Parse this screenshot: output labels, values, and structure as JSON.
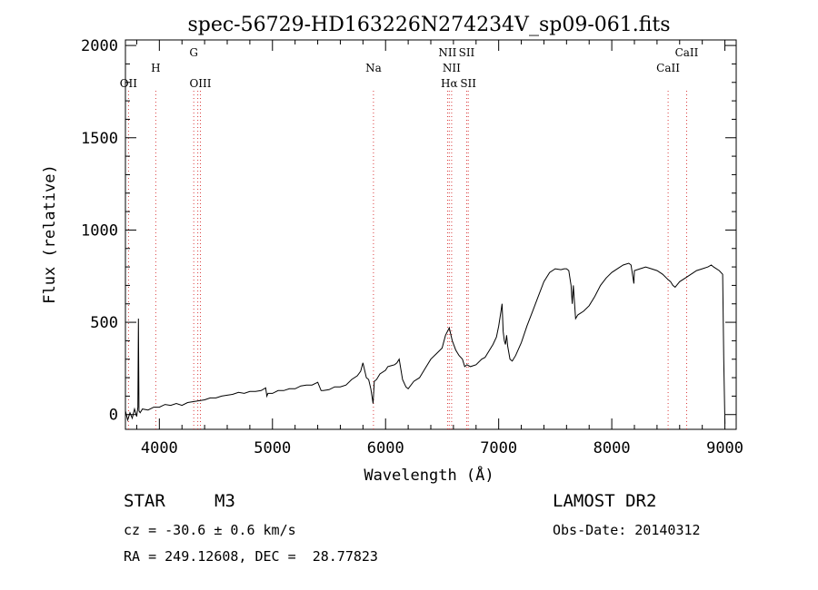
{
  "chart_data": {
    "type": "line",
    "title": "spec-56729-HD163226N274234V_sp09-061.fits",
    "xlabel": "Wavelength (Å)",
    "ylabel": "Flux (relative)",
    "xlim": [
      3700,
      9100
    ],
    "ylim": [
      -80,
      2030
    ],
    "xticks": [
      "4000",
      "5000",
      "6000",
      "7000",
      "8000",
      "9000"
    ],
    "yticks": [
      "0",
      "500",
      "1000",
      "1500",
      "2000"
    ],
    "grid": false,
    "series": [
      {
        "x": [
          3700,
          3720,
          3740,
          3760,
          3780,
          3800,
          3810,
          3815,
          3820,
          3830,
          3850,
          3900,
          3950,
          4000,
          4050,
          4100,
          4150,
          4200,
          4250,
          4300,
          4350,
          4400,
          4450,
          4500,
          4550,
          4600,
          4650,
          4700,
          4750,
          4800,
          4850,
          4900,
          4940,
          4950,
          4960,
          5000,
          5050,
          5100,
          5150,
          5200,
          5250,
          5300,
          5350,
          5400,
          5430,
          5450,
          5500,
          5550,
          5600,
          5650,
          5700,
          5750,
          5780,
          5800,
          5830,
          5850,
          5870,
          5890,
          5900,
          5920,
          5950,
          6000,
          6020,
          6050,
          6080,
          6100,
          6120,
          6150,
          6180,
          6200,
          6250,
          6300,
          6350,
          6400,
          6450,
          6500,
          6530,
          6563,
          6590,
          6620,
          6650,
          6680,
          6700,
          6720,
          6750,
          6800,
          6850,
          6880,
          6900,
          6950,
          6980,
          7000,
          7020,
          7030,
          7040,
          7050,
          7060,
          7070,
          7080,
          7100,
          7120,
          7150,
          7200,
          7250,
          7300,
          7350,
          7400,
          7450,
          7500,
          7550,
          7580,
          7600,
          7620,
          7640,
          7650,
          7660,
          7680,
          7700,
          7750,
          7800,
          7850,
          7900,
          7950,
          8000,
          8050,
          8100,
          8150,
          8170,
          8190,
          8195,
          8200,
          8250,
          8300,
          8350,
          8400,
          8450,
          8500,
          8520,
          8540,
          8560,
          8600,
          8650,
          8700,
          8750,
          8800,
          8850,
          8880,
          8900,
          8950,
          8980,
          8990,
          9000
        ],
        "y": [
          20,
          -30,
          10,
          -20,
          30,
          -10,
          40,
          520,
          20,
          10,
          30,
          25,
          40,
          40,
          55,
          50,
          60,
          50,
          65,
          70,
          75,
          80,
          90,
          90,
          100,
          105,
          110,
          120,
          115,
          125,
          125,
          130,
          145,
          100,
          115,
          115,
          130,
          130,
          140,
          140,
          155,
          160,
          160,
          175,
          130,
          130,
          135,
          150,
          150,
          160,
          190,
          210,
          235,
          280,
          200,
          190,
          140,
          60,
          180,
          190,
          220,
          240,
          260,
          265,
          270,
          280,
          300,
          190,
          150,
          140,
          180,
          200,
          250,
          300,
          330,
          360,
          430,
          470,
          400,
          350,
          320,
          300,
          260,
          270,
          260,
          270,
          300,
          310,
          330,
          380,
          420,
          480,
          560,
          600,
          450,
          400,
          380,
          430,
          370,
          300,
          290,
          320,
          390,
          480,
          560,
          640,
          720,
          770,
          790,
          785,
          790,
          790,
          780,
          700,
          600,
          700,
          520,
          540,
          560,
          590,
          640,
          700,
          740,
          770,
          790,
          810,
          820,
          810,
          730,
          710,
          780,
          790,
          800,
          790,
          780,
          760,
          730,
          720,
          700,
          690,
          720,
          740,
          760,
          780,
          790,
          800,
          810,
          800,
          780,
          760,
          300,
          -50
        ]
      }
    ],
    "line_annotations": [
      {
        "wavelength": 3727,
        "label": "OII",
        "label_row": 3
      },
      {
        "wavelength": 3968,
        "label": "H",
        "label_row": 2
      },
      {
        "wavelength": 4304,
        "label": "G",
        "label_row": 1
      },
      {
        "wavelength": 4340,
        "label": "",
        "label_row": 0
      },
      {
        "wavelength": 4363,
        "label": "OIII",
        "label_row": 3
      },
      {
        "wavelength": 5893,
        "label": "Na",
        "label_row": 2
      },
      {
        "wavelength": 6548,
        "label": "NII",
        "label_row": 1
      },
      {
        "wavelength": 6563,
        "label": "Hα",
        "label_row": 3
      },
      {
        "wavelength": 6584,
        "label": "NII",
        "label_row": 2
      },
      {
        "wavelength": 6717,
        "label": "SII",
        "label_row": 1
      },
      {
        "wavelength": 6731,
        "label": "SII",
        "label_row": 3
      },
      {
        "wavelength": 8498,
        "label": "CaII",
        "label_row": 2
      },
      {
        "wavelength": 8662,
        "label": "CaII",
        "label_row": 1
      }
    ]
  },
  "footer": {
    "object_type": "STAR",
    "subclass": "M3",
    "survey": "LAMOST DR2",
    "velocity": "cz = -30.6 ± 0.6 km/s",
    "obs_date": "Obs-Date: 20140312",
    "coords": "RA = 249.12608, DEC =  28.77823"
  }
}
